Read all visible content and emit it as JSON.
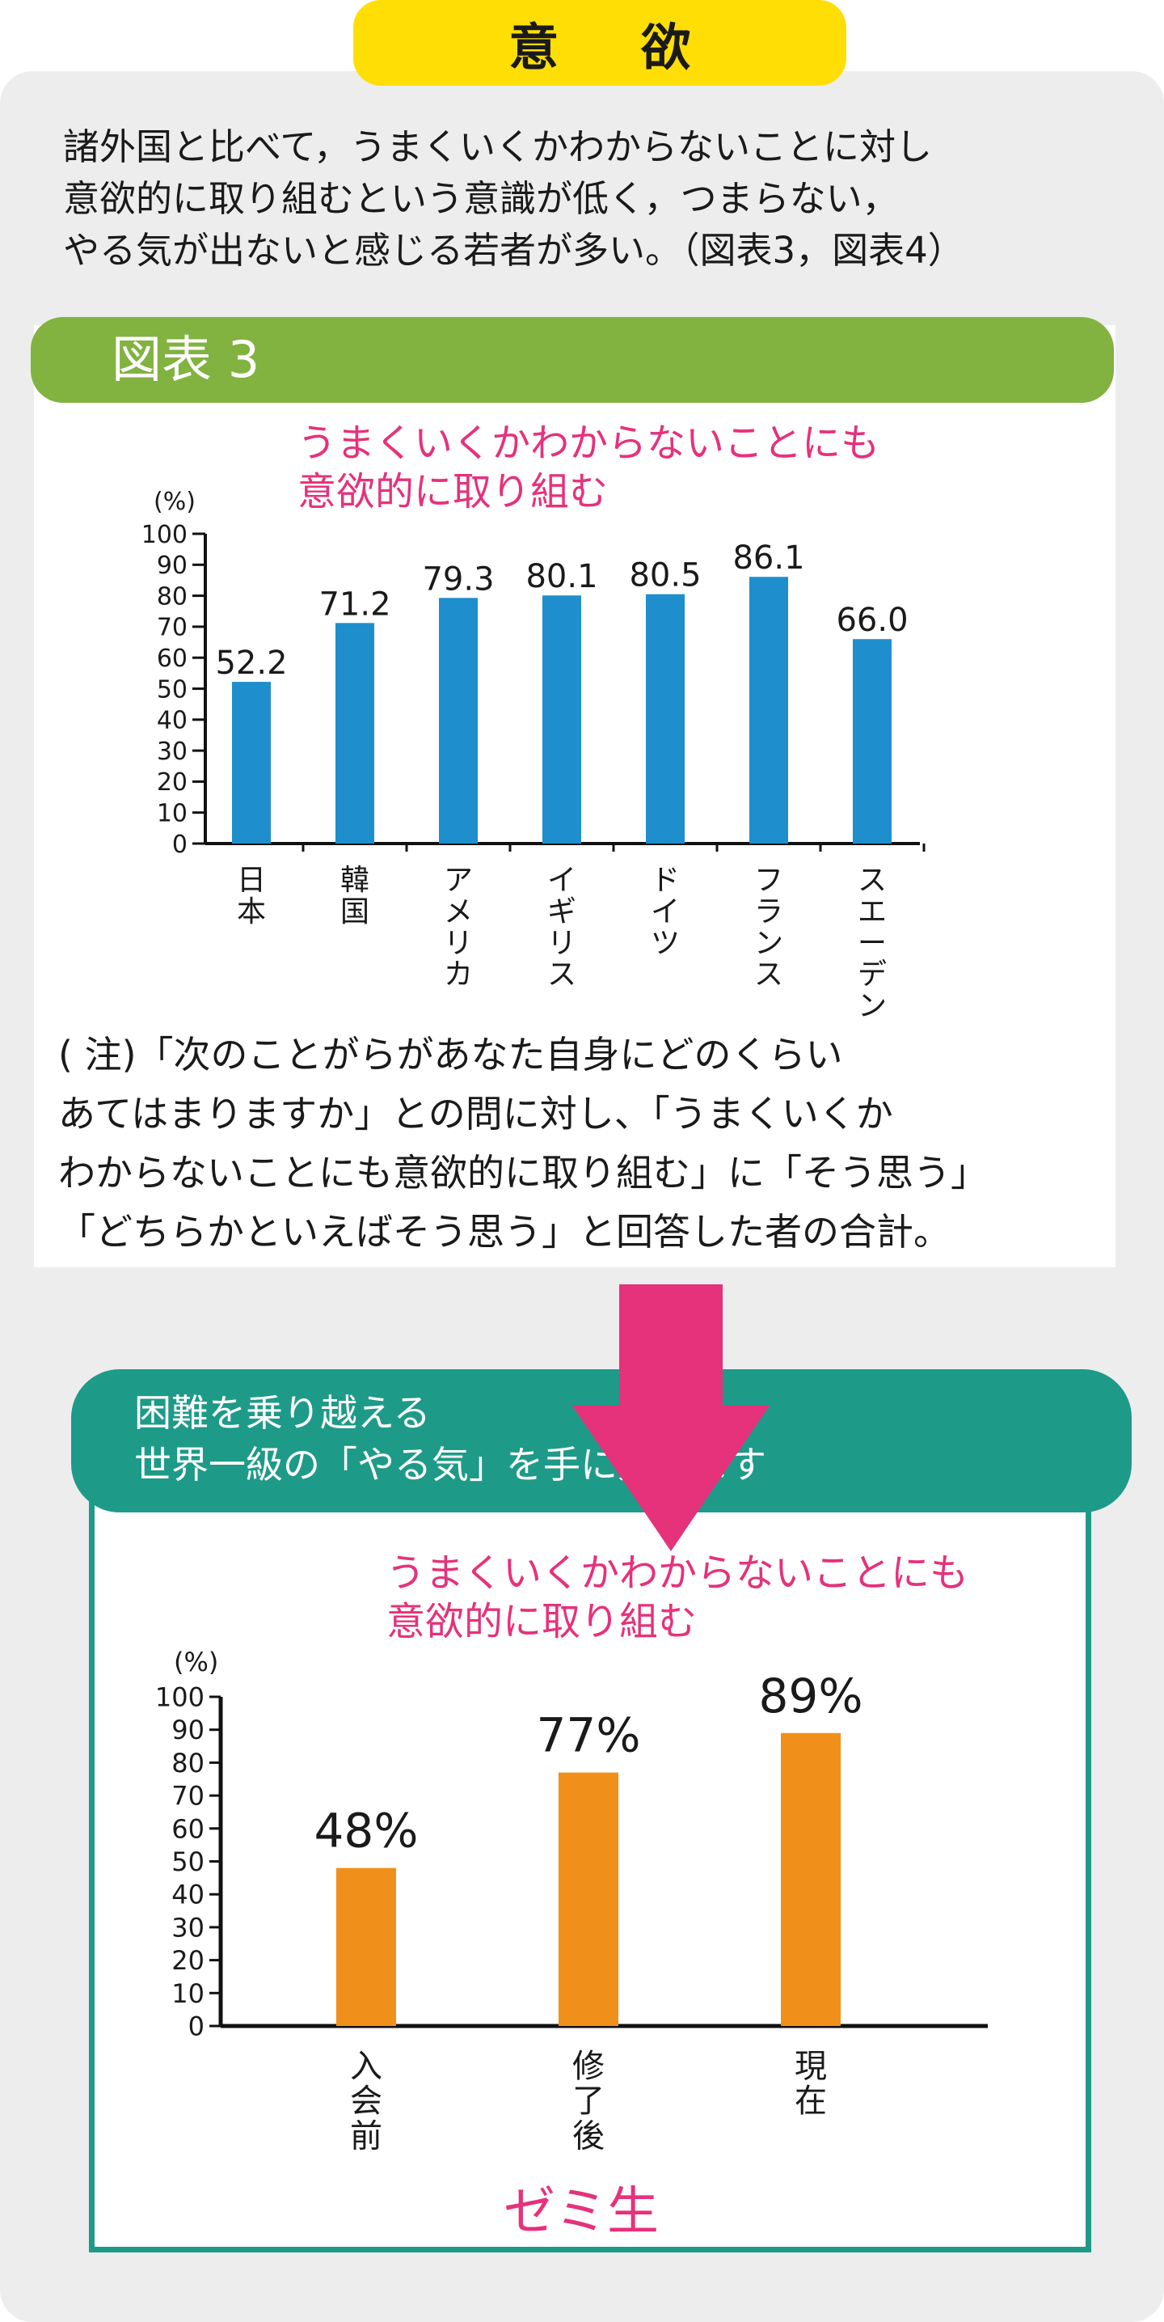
{
  "page_title": "意 欲",
  "intro_lines": [
    "諸外国と比べて，うまくいくかわからないことに対し",
    "意欲的に取り組むという意識が低く，つまらない，",
    "やる気が出ないと感じる若者が多い。（図表3，図表4）"
  ],
  "figure3_label": "図表 3",
  "note_lines": [
    "( 注)「次のことがらがあなた自身にどのくらい",
    "あてはまりますか」との問に対し、「うまくいくか",
    "わからないことにも意欲的に取り組む」に「そう思う」",
    "「どちらかといえばそう思う」と回答した者の合計。"
  ],
  "banner_lines": [
    "困難を乗り越える",
    "世界一級の「やる気」を手に入れます"
  ],
  "seminar_label": "ゼミ生",
  "colors": {
    "title_yellow": "#ffde05",
    "figure_header_green": "#82b240",
    "banner_teal": "#1e9a88",
    "pink_accent": "#e6317b",
    "bar_blue": "#1e8fcc",
    "bar_orange": "#f0901a"
  },
  "chart_data": [
    {
      "type": "bar",
      "title_lines": [
        "うまくいくかわからないことにも",
        "意欲的に取り組む"
      ],
      "ylabel": "(%)",
      "ylim": [
        0,
        100
      ],
      "yticks": [
        "0",
        "10",
        "20",
        "30",
        "40",
        "50",
        "60",
        "70",
        "80",
        "90",
        "100"
      ],
      "categories": [
        "日本",
        "韓国",
        "アメリカ",
        "イギリス",
        "ドイツ",
        "フランス",
        "スエーデン"
      ],
      "values": [
        52.2,
        71.2,
        79.3,
        80.1,
        80.5,
        86.1,
        66.0
      ],
      "value_labels": [
        "52.2",
        "71.2",
        "79.3",
        "80.1",
        "80.5",
        "86.1",
        "66.0"
      ],
      "bar_color": "#1e8fcc"
    },
    {
      "type": "bar",
      "title_lines": [
        "うまくいくかわからないことにも",
        "意欲的に取り組む"
      ],
      "ylabel": "(%)",
      "ylim": [
        0,
        100
      ],
      "yticks": [
        "0",
        "10",
        "20",
        "30",
        "40",
        "50",
        "60",
        "70",
        "80",
        "90",
        "100"
      ],
      "categories": [
        "入会前",
        "修了後",
        "現在"
      ],
      "values": [
        48,
        77,
        89
      ],
      "value_labels": [
        "48%",
        "77%",
        "89%"
      ],
      "bar_color": "#f0901a"
    }
  ]
}
